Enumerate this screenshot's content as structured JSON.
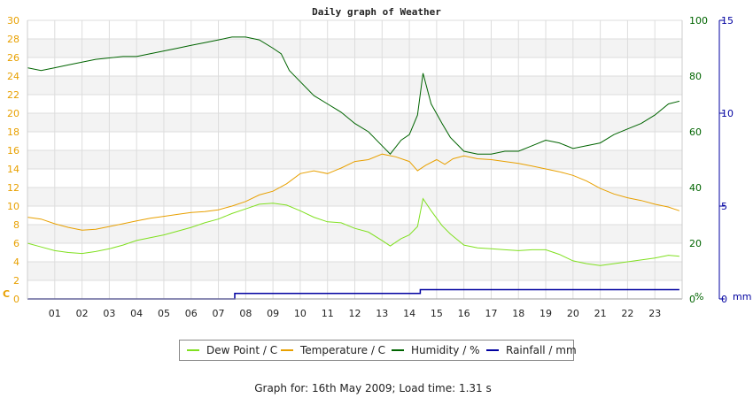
{
  "chart_data": {
    "type": "line",
    "title": "Daily graph of Weather",
    "x_ticks": [
      "01",
      "02",
      "03",
      "04",
      "05",
      "06",
      "07",
      "08",
      "09",
      "10",
      "11",
      "12",
      "13",
      "14",
      "15",
      "16",
      "17",
      "18",
      "19",
      "20",
      "21",
      "22",
      "23"
    ],
    "xlim": [
      0,
      24
    ],
    "left_axis": {
      "unit": "C",
      "ylim": [
        0,
        30
      ],
      "ticks": [
        0,
        2,
        4,
        6,
        8,
        10,
        12,
        14,
        16,
        18,
        20,
        22,
        24,
        26,
        28,
        30
      ],
      "color": "#e8a000"
    },
    "right_axis_1": {
      "unit": "%",
      "ylim": [
        0,
        100
      ],
      "ticks": [
        0,
        20,
        40,
        60,
        80,
        100
      ],
      "color": "#006400"
    },
    "right_axis_2": {
      "unit": "mm",
      "ylim": [
        0,
        15
      ],
      "ticks": [
        0,
        5,
        10,
        15
      ],
      "color": "#0000a0"
    },
    "grid": true,
    "legend_position": "bottom",
    "series": [
      {
        "name": "Dew Point / C",
        "axis": "left",
        "color": "#80e020",
        "points": [
          [
            0,
            6.0
          ],
          [
            0.5,
            5.6
          ],
          [
            1,
            5.2
          ],
          [
            1.5,
            5.0
          ],
          [
            2,
            4.9
          ],
          [
            2.5,
            5.1
          ],
          [
            3,
            5.4
          ],
          [
            3.5,
            5.8
          ],
          [
            4,
            6.3
          ],
          [
            4.5,
            6.6
          ],
          [
            5,
            6.9
          ],
          [
            5.5,
            7.3
          ],
          [
            6,
            7.7
          ],
          [
            6.5,
            8.2
          ],
          [
            7,
            8.6
          ],
          [
            7.5,
            9.2
          ],
          [
            8,
            9.7
          ],
          [
            8.5,
            10.2
          ],
          [
            9,
            10.3
          ],
          [
            9.5,
            10.1
          ],
          [
            10,
            9.5
          ],
          [
            10.5,
            8.8
          ],
          [
            11,
            8.3
          ],
          [
            11.5,
            8.2
          ],
          [
            12,
            7.6
          ],
          [
            12.5,
            7.2
          ],
          [
            13,
            6.3
          ],
          [
            13.3,
            5.7
          ],
          [
            13.7,
            6.5
          ],
          [
            14,
            6.9
          ],
          [
            14.3,
            7.8
          ],
          [
            14.5,
            10.8
          ],
          [
            14.8,
            9.5
          ],
          [
            15.2,
            7.9
          ],
          [
            15.5,
            7.0
          ],
          [
            16,
            5.8
          ],
          [
            16.5,
            5.5
          ],
          [
            17,
            5.4
          ],
          [
            17.5,
            5.3
          ],
          [
            18,
            5.2
          ],
          [
            18.5,
            5.3
          ],
          [
            19,
            5.3
          ],
          [
            19.5,
            4.8
          ],
          [
            20,
            4.1
          ],
          [
            20.5,
            3.8
          ],
          [
            21,
            3.6
          ],
          [
            21.5,
            3.8
          ],
          [
            22,
            4.0
          ],
          [
            22.5,
            4.2
          ],
          [
            23,
            4.4
          ],
          [
            23.5,
            4.7
          ],
          [
            23.9,
            4.6
          ]
        ]
      },
      {
        "name": "Temperature / C",
        "axis": "left",
        "color": "#e8a000",
        "points": [
          [
            0,
            8.8
          ],
          [
            0.5,
            8.6
          ],
          [
            1,
            8.1
          ],
          [
            1.5,
            7.7
          ],
          [
            2,
            7.4
          ],
          [
            2.5,
            7.5
          ],
          [
            3,
            7.8
          ],
          [
            3.5,
            8.1
          ],
          [
            4,
            8.4
          ],
          [
            4.5,
            8.7
          ],
          [
            5,
            8.9
          ],
          [
            5.5,
            9.1
          ],
          [
            6,
            9.3
          ],
          [
            6.5,
            9.4
          ],
          [
            7,
            9.6
          ],
          [
            7.5,
            10.0
          ],
          [
            8,
            10.5
          ],
          [
            8.5,
            11.2
          ],
          [
            9,
            11.6
          ],
          [
            9.5,
            12.4
          ],
          [
            10,
            13.5
          ],
          [
            10.5,
            13.8
          ],
          [
            11,
            13.5
          ],
          [
            11.5,
            14.1
          ],
          [
            12,
            14.8
          ],
          [
            12.5,
            15.0
          ],
          [
            13,
            15.6
          ],
          [
            13.5,
            15.3
          ],
          [
            14,
            14.8
          ],
          [
            14.3,
            13.8
          ],
          [
            14.6,
            14.4
          ],
          [
            15,
            15.0
          ],
          [
            15.3,
            14.5
          ],
          [
            15.6,
            15.1
          ],
          [
            16,
            15.4
          ],
          [
            16.5,
            15.1
          ],
          [
            17,
            15.0
          ],
          [
            17.5,
            14.8
          ],
          [
            18,
            14.6
          ],
          [
            18.5,
            14.3
          ],
          [
            19,
            14.0
          ],
          [
            19.5,
            13.7
          ],
          [
            20,
            13.3
          ],
          [
            20.5,
            12.7
          ],
          [
            21,
            11.9
          ],
          [
            21.5,
            11.3
          ],
          [
            22,
            10.9
          ],
          [
            22.5,
            10.6
          ],
          [
            23,
            10.2
          ],
          [
            23.5,
            9.9
          ],
          [
            23.9,
            9.5
          ]
        ]
      },
      {
        "name": "Humidity / %",
        "axis": "right_1",
        "color": "#006400",
        "points": [
          [
            0,
            83
          ],
          [
            0.5,
            82
          ],
          [
            1,
            83
          ],
          [
            1.5,
            84
          ],
          [
            2,
            85
          ],
          [
            2.5,
            86
          ],
          [
            3,
            86.5
          ],
          [
            3.5,
            87
          ],
          [
            4,
            87
          ],
          [
            4.5,
            88
          ],
          [
            5,
            89
          ],
          [
            5.5,
            90
          ],
          [
            6,
            91
          ],
          [
            6.5,
            92
          ],
          [
            7,
            93
          ],
          [
            7.5,
            94
          ],
          [
            8,
            94
          ],
          [
            8.5,
            93
          ],
          [
            9,
            90
          ],
          [
            9.3,
            88
          ],
          [
            9.6,
            82
          ],
          [
            10,
            78
          ],
          [
            10.5,
            73
          ],
          [
            11,
            70
          ],
          [
            11.5,
            67
          ],
          [
            12,
            63
          ],
          [
            12.5,
            60
          ],
          [
            13,
            55
          ],
          [
            13.3,
            52
          ],
          [
            13.7,
            57
          ],
          [
            14,
            59
          ],
          [
            14.3,
            66
          ],
          [
            14.5,
            81
          ],
          [
            14.8,
            70
          ],
          [
            15.2,
            63
          ],
          [
            15.5,
            58
          ],
          [
            16,
            53
          ],
          [
            16.5,
            52
          ],
          [
            17,
            52
          ],
          [
            17.5,
            53
          ],
          [
            18,
            53
          ],
          [
            18.5,
            55
          ],
          [
            19,
            57
          ],
          [
            19.5,
            56
          ],
          [
            20,
            54
          ],
          [
            20.5,
            55
          ],
          [
            21,
            56
          ],
          [
            21.5,
            59
          ],
          [
            22,
            61
          ],
          [
            22.5,
            63
          ],
          [
            23,
            66
          ],
          [
            23.5,
            70
          ],
          [
            23.9,
            71
          ]
        ]
      },
      {
        "name": "Rainfall / mm",
        "axis": "right_2",
        "color": "#0000a0",
        "points": [
          [
            0,
            0
          ],
          [
            7.6,
            0
          ],
          [
            7.6,
            0.3
          ],
          [
            14.4,
            0.3
          ],
          [
            14.4,
            0.5
          ],
          [
            23.9,
            0.5
          ]
        ]
      }
    ],
    "footer": "Graph for: 16th May 2009; Load time: 1.31 s"
  }
}
